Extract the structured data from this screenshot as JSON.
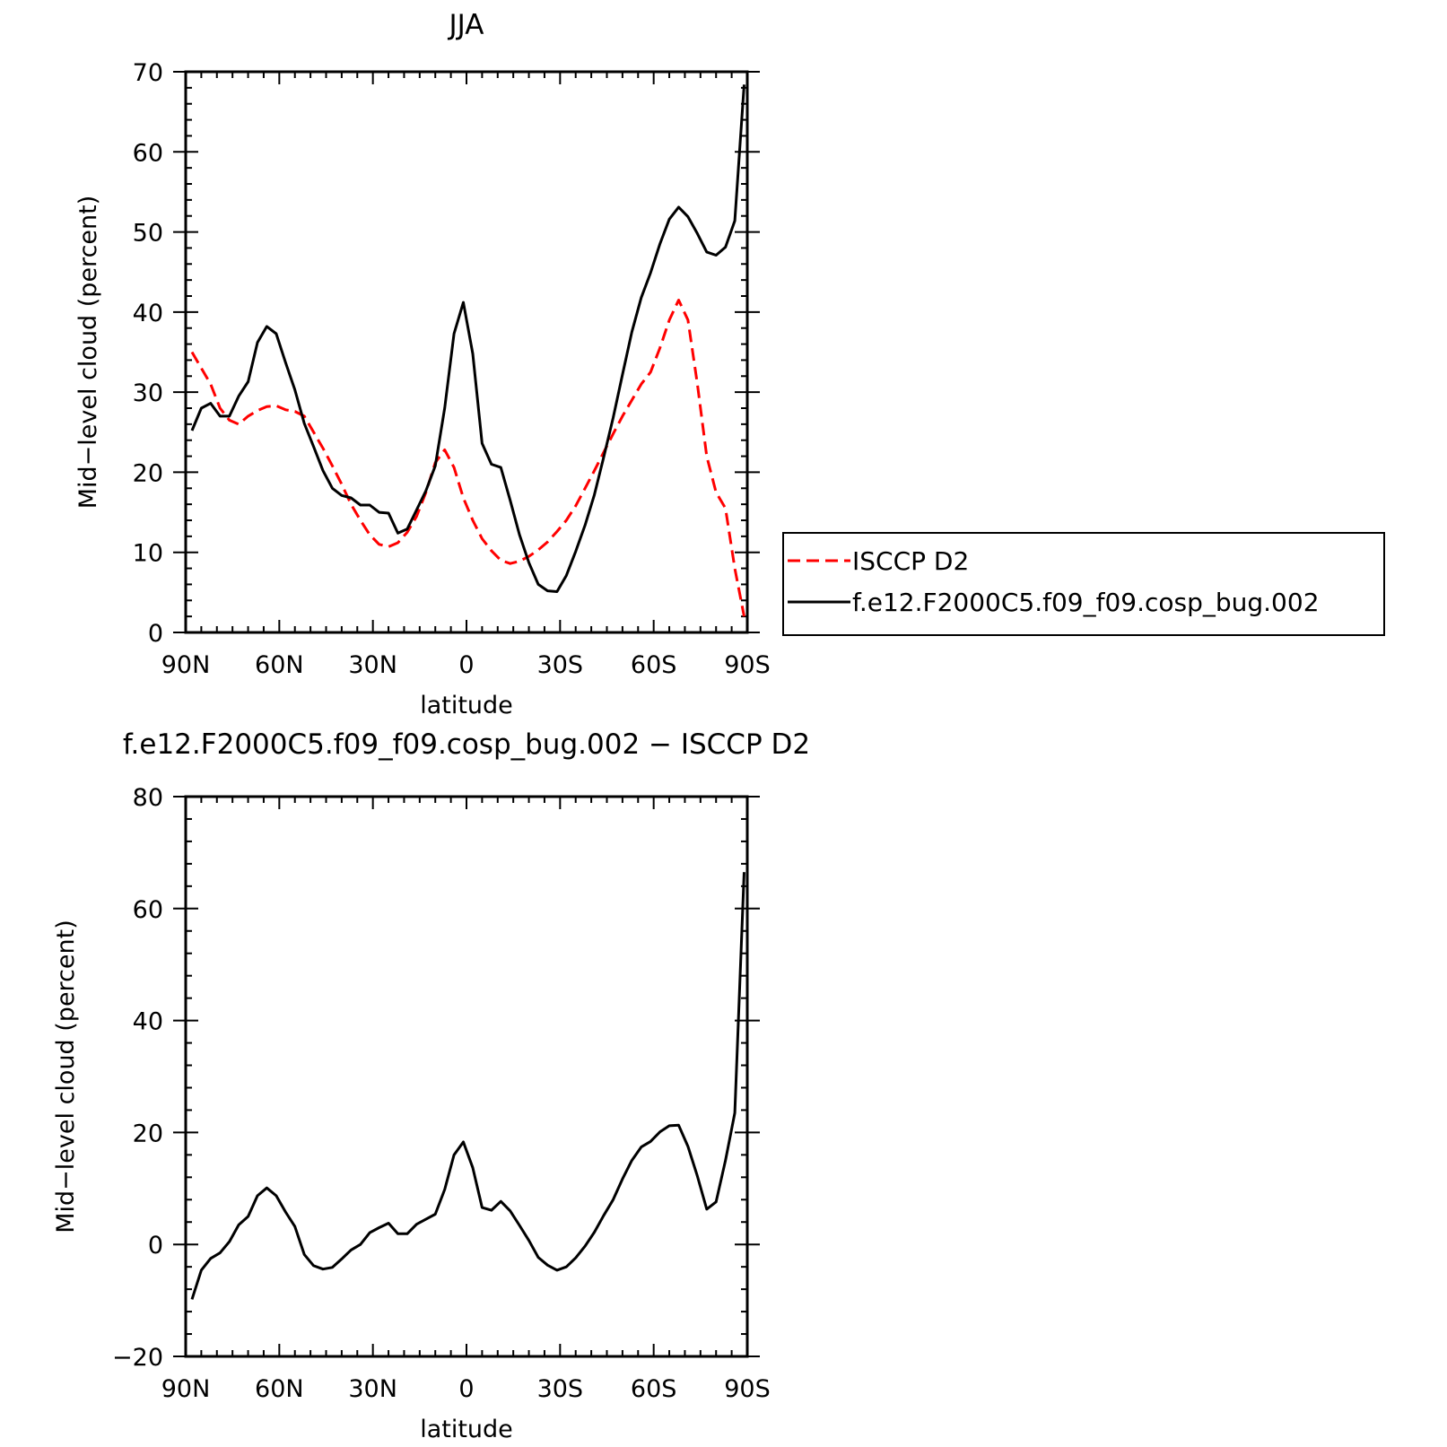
{
  "chart_data": [
    {
      "type": "line",
      "title": "JJA",
      "xlabel": "latitude",
      "ylabel": "Mid-level cloud (percent)",
      "xlim": [
        90,
        -90
      ],
      "ylim": [
        0,
        70
      ],
      "x_ticks": [
        90,
        60,
        30,
        0,
        -30,
        -60,
        -90
      ],
      "x_tick_labels": [
        "90N",
        "60N",
        "30N",
        "0",
        "30S",
        "60S",
        "90S"
      ],
      "y_ticks": [
        0,
        10,
        20,
        30,
        40,
        50,
        60,
        70
      ],
      "y_tick_labels": [
        "0",
        "10",
        "20",
        "30",
        "40",
        "50",
        "60",
        "70"
      ],
      "legend_position": "right",
      "series": [
        {
          "name": "ISCCP D2",
          "color": "#ff0000",
          "dash": "dashed",
          "x": [
            88,
            85,
            82,
            79,
            76,
            73,
            70,
            67,
            64,
            61,
            58,
            55,
            52,
            49,
            46,
            43,
            40,
            37,
            34,
            31,
            28,
            25,
            22,
            19,
            16,
            13,
            10,
            7,
            4,
            1,
            -2,
            -5,
            -8,
            -11,
            -14,
            -17,
            -20,
            -23,
            -26,
            -29,
            -32,
            -35,
            -38,
            -41,
            -44,
            -47,
            -50,
            -53,
            -56,
            -59,
            -62,
            -65,
            -68,
            -71,
            -74,
            -77,
            -80,
            -83,
            -86,
            -89
          ],
          "y": [
            35,
            33,
            31,
            28,
            26.5,
            26,
            27,
            27.7,
            28.2,
            28.3,
            27.8,
            27.6,
            27,
            25,
            23,
            20.8,
            18.5,
            16,
            14,
            12.2,
            11,
            10.7,
            11.2,
            12.5,
            14.5,
            17.5,
            21.2,
            22.8,
            20.6,
            16.8,
            14,
            11.7,
            10.2,
            9,
            8.6,
            8.9,
            9.5,
            10.3,
            11.3,
            12.6,
            14,
            15.8,
            18,
            20.2,
            22.5,
            24.8,
            27,
            29,
            31,
            32.5,
            35.5,
            39,
            41.5,
            39,
            31,
            22,
            17.5,
            15.5,
            8,
            2
          ]
        },
        {
          "name": "f.e12.F2000C5.f09_f09.cosp_bug.002",
          "color": "#000000",
          "dash": "solid",
          "x": [
            88,
            85,
            82,
            79,
            76,
            73,
            70,
            67,
            64,
            61,
            58,
            55,
            52,
            49,
            46,
            43,
            40,
            37,
            34,
            31,
            28,
            25,
            22,
            19,
            16,
            13,
            10,
            7,
            4,
            1,
            -2,
            -5,
            -8,
            -11,
            -14,
            -17,
            -20,
            -23,
            -26,
            -29,
            -32,
            -35,
            -38,
            -41,
            -44,
            -47,
            -50,
            -53,
            -56,
            -59,
            -62,
            -65,
            -68,
            -71,
            -74,
            -77,
            -80,
            -83,
            -86,
            -89
          ],
          "y": [
            25.2,
            28,
            28.6,
            27,
            27,
            29.5,
            31.3,
            36.2,
            38.2,
            37.3,
            33.7,
            30.3,
            26.1,
            23.2,
            20.2,
            18,
            17.1,
            16.8,
            15.9,
            15.9,
            15,
            14.9,
            12.4,
            12.9,
            15.3,
            17.7,
            20.8,
            28,
            37.3,
            41.2,
            34.8,
            23.6,
            21,
            20.6,
            16.5,
            12.2,
            8.7,
            6,
            5.2,
            5.1,
            7.1,
            10.1,
            13.4,
            17.2,
            21.9,
            26.8,
            32.2,
            37.5,
            41.8,
            44.9,
            48.5,
            51.6,
            53.1,
            51.9,
            49.8,
            47.5,
            47.1,
            48.1,
            51.4,
            68.4
          ]
        }
      ]
    },
    {
      "type": "line",
      "title": "f.e12.F2000C5.f09_f09.cosp_bug.002 - ISCCP D2",
      "xlabel": "latitude",
      "ylabel": "Mid-level cloud (percent)",
      "xlim": [
        90,
        -90
      ],
      "ylim": [
        -20,
        80
      ],
      "x_ticks": [
        90,
        60,
        30,
        0,
        -30,
        -60,
        -90
      ],
      "x_tick_labels": [
        "90N",
        "60N",
        "30N",
        "0",
        "30S",
        "60S",
        "90S"
      ],
      "y_ticks": [
        -20,
        0,
        20,
        40,
        60,
        80
      ],
      "y_tick_labels": [
        "-20",
        "0",
        "20",
        "40",
        "60",
        "80"
      ],
      "series": [
        {
          "color": "#000000",
          "dash": "solid",
          "x": [
            88,
            85,
            82,
            79,
            76,
            73,
            70,
            67,
            64,
            61,
            58,
            55,
            52,
            49,
            46,
            43,
            40,
            37,
            34,
            31,
            28,
            25,
            22,
            19,
            16,
            13,
            10,
            7,
            4,
            1,
            -2,
            -5,
            -8,
            -11,
            -14,
            -17,
            -20,
            -23,
            -26,
            -29,
            -32,
            -35,
            -38,
            -41,
            -44,
            -47,
            -50,
            -53,
            -56,
            -59,
            -62,
            -65,
            -68,
            -71,
            -74,
            -77,
            -80,
            -83,
            -86,
            -89
          ],
          "y": [
            -9.8,
            -4.6,
            -2.5,
            -1.5,
            0.5,
            3.5,
            5,
            8.7,
            10.1,
            8.7,
            5.8,
            3.2,
            -1.8,
            -3.8,
            -4.4,
            -4.1,
            -2.6,
            -1,
            0,
            2.1,
            3,
            3.8,
            1.9,
            1.9,
            3.6,
            4.5,
            5.4,
            9.8,
            16,
            18.3,
            13.7,
            6.6,
            6.1,
            7.7,
            6,
            3.4,
            0.7,
            -2.3,
            -3.7,
            -4.6,
            -4,
            -2.4,
            -0.3,
            2.2,
            5.2,
            8,
            11.7,
            15,
            17.4,
            18.4,
            20.1,
            21.2,
            21.3,
            17.5,
            12.2,
            6.3,
            7.6,
            15,
            23.5,
            66.5
          ]
        }
      ]
    }
  ]
}
